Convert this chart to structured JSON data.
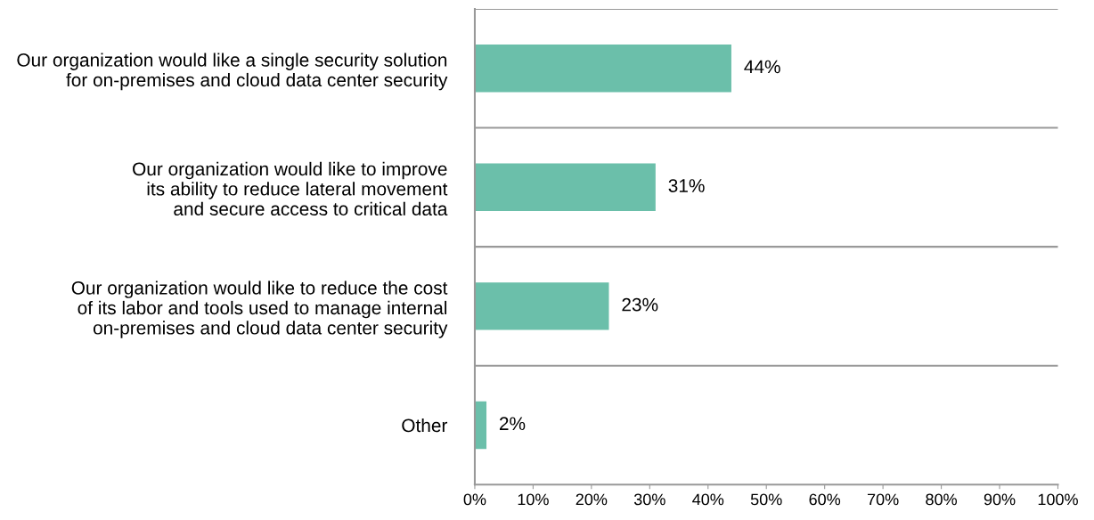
{
  "chart_data": {
    "type": "bar",
    "orientation": "horizontal",
    "categories": [
      "Our organization would like a single security solution\nfor on-premises and cloud data center security",
      "Our organization would like to improve\nits ability to reduce lateral movement\nand secure access to critical data",
      "Our organization would like to reduce the cost\nof its labor and tools used to manage internal\non-premises and cloud data center security",
      "Other"
    ],
    "values": [
      44,
      31,
      23,
      2
    ],
    "value_labels": [
      "44%",
      "31%",
      "23%",
      "2%"
    ],
    "color": "#6bbfaa",
    "xlim": [
      0,
      100
    ],
    "xticks": [
      {
        "value": 0,
        "label": "0%"
      },
      {
        "value": 10,
        "label": "10%"
      },
      {
        "value": 20,
        "label": "20%"
      },
      {
        "value": 30,
        "label": "30%"
      },
      {
        "value": 40,
        "label": "40%"
      },
      {
        "value": 50,
        "label": "50%"
      },
      {
        "value": 60,
        "label": "60%"
      },
      {
        "value": 70,
        "label": "70%"
      },
      {
        "value": 80,
        "label": "80%"
      },
      {
        "value": 90,
        "label": "90%"
      },
      {
        "value": 100,
        "label": "100%"
      }
    ],
    "grid": "y"
  }
}
